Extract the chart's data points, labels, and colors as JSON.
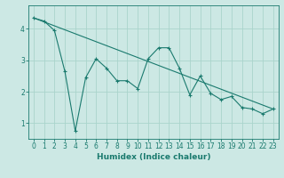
{
  "title": "",
  "xlabel": "Humidex (Indice chaleur)",
  "ylabel": "",
  "background_color": "#cce8e4",
  "grid_color": "#aad4cc",
  "line_color": "#1a7a6e",
  "x_data": [
    0,
    1,
    2,
    3,
    4,
    5,
    6,
    7,
    8,
    9,
    10,
    11,
    12,
    13,
    14,
    15,
    16,
    17,
    18,
    19,
    20,
    21,
    22,
    23
  ],
  "y_data": [
    4.35,
    4.25,
    3.95,
    2.65,
    0.75,
    2.45,
    3.05,
    2.75,
    2.35,
    2.35,
    2.1,
    3.05,
    3.4,
    3.4,
    2.75,
    1.9,
    2.5,
    1.95,
    1.75,
    1.85,
    1.5,
    1.45,
    1.3,
    1.45
  ],
  "trend_x": [
    0,
    23
  ],
  "trend_y": [
    4.35,
    1.45
  ],
  "xlim": [
    -0.5,
    23.5
  ],
  "ylim": [
    0.5,
    4.75
  ],
  "yticks": [
    1,
    2,
    3,
    4
  ],
  "xticks": [
    0,
    1,
    2,
    3,
    4,
    5,
    6,
    7,
    8,
    9,
    10,
    11,
    12,
    13,
    14,
    15,
    16,
    17,
    18,
    19,
    20,
    21,
    22,
    23
  ],
  "tick_fontsize": 5.5,
  "label_fontsize": 6.5
}
